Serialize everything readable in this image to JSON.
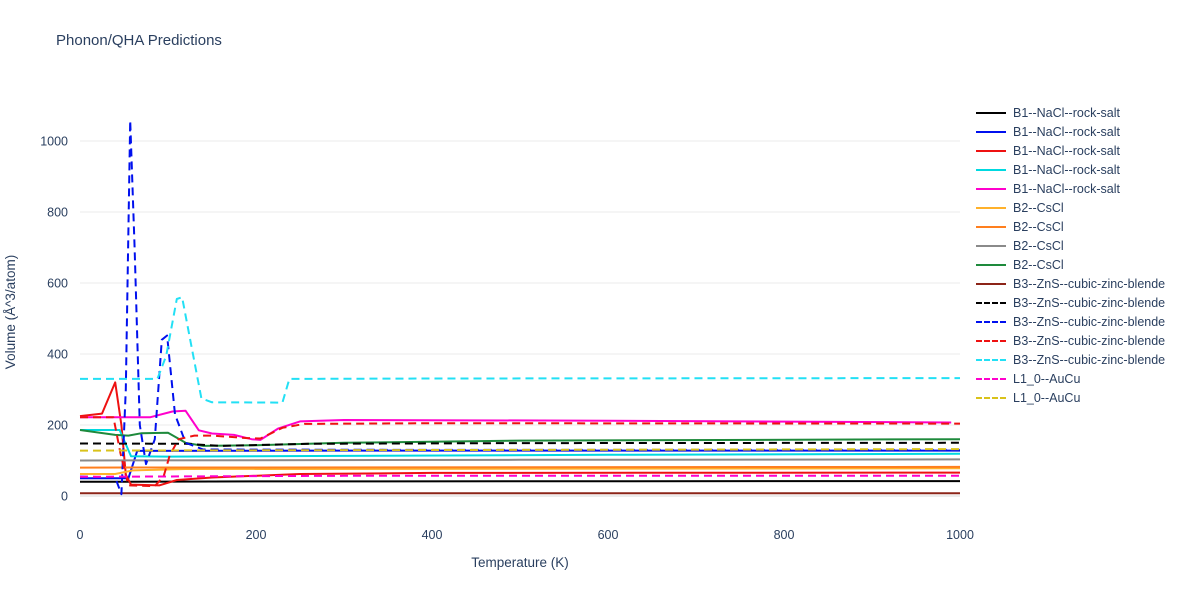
{
  "page": {
    "title": "Phonon/QHA Predictions"
  },
  "chart_data": {
    "type": "line",
    "title": "Phonon/QHA Predictions",
    "xlabel": "Temperature (K)",
    "ylabel": "Volume (Å^3/atom)",
    "xlim": [
      0,
      1000
    ],
    "ylim": [
      -65,
      1115
    ],
    "x_ticks": [
      0,
      200,
      400,
      600,
      800,
      1000
    ],
    "y_ticks": [
      0,
      200,
      400,
      600,
      800,
      1000
    ],
    "grid": true,
    "legend_position": "right",
    "series": [
      {
        "name": "B1--NaCl--rock-salt",
        "color": "#000000",
        "dash": "solid",
        "points": [
          [
            0,
            40
          ],
          [
            200,
            41
          ],
          [
            1000,
            42
          ]
        ]
      },
      {
        "name": "B1--NaCl--rock-salt",
        "color": "#0010ee",
        "dash": "solid",
        "points": [
          [
            0,
            50
          ],
          [
            55,
            50
          ],
          [
            65,
            127
          ],
          [
            300,
            128
          ],
          [
            1000,
            128
          ]
        ]
      },
      {
        "name": "B1--NaCl--rock-salt",
        "color": "#ee1111",
        "dash": "solid",
        "points": [
          [
            0,
            225
          ],
          [
            25,
            232
          ],
          [
            40,
            320
          ],
          [
            47,
            200
          ],
          [
            52,
            60
          ],
          [
            58,
            32
          ],
          [
            90,
            30
          ],
          [
            110,
            45
          ],
          [
            150,
            52
          ],
          [
            250,
            62
          ],
          [
            400,
            65
          ],
          [
            1000,
            66
          ]
        ]
      },
      {
        "name": "B1--NaCl--rock-salt",
        "color": "#00d9e0",
        "dash": "solid",
        "points": [
          [
            0,
            186
          ],
          [
            45,
            186
          ],
          [
            58,
            112
          ],
          [
            100,
            111
          ],
          [
            300,
            113
          ],
          [
            600,
            116
          ],
          [
            1000,
            119
          ]
        ]
      },
      {
        "name": "B1--NaCl--rock-salt",
        "color": "#ff00cc",
        "dash": "solid",
        "points": [
          [
            0,
            222
          ],
          [
            80,
            222
          ],
          [
            105,
            238
          ],
          [
            120,
            240
          ],
          [
            135,
            185
          ],
          [
            150,
            176
          ],
          [
            175,
            172
          ],
          [
            195,
            160
          ],
          [
            205,
            158
          ],
          [
            225,
            190
          ],
          [
            250,
            210
          ],
          [
            300,
            214
          ],
          [
            600,
            212
          ],
          [
            990,
            207
          ]
        ]
      },
      {
        "name": "B2--CsCl",
        "color": "#ffb12b",
        "dash": "solid",
        "points": [
          [
            0,
            62
          ],
          [
            40,
            62
          ],
          [
            60,
            72
          ],
          [
            120,
            76
          ],
          [
            1000,
            78
          ]
        ]
      },
      {
        "name": "B2--CsCl",
        "color": "#ff7f1e",
        "dash": "solid",
        "points": [
          [
            0,
            80
          ],
          [
            500,
            81
          ],
          [
            1000,
            82
          ]
        ]
      },
      {
        "name": "B2--CsCl",
        "color": "#8a8a8a",
        "dash": "solid",
        "points": [
          [
            0,
            100
          ],
          [
            500,
            102
          ],
          [
            1000,
            103
          ]
        ]
      },
      {
        "name": "B2--CsCl",
        "color": "#1e8a3c",
        "dash": "solid",
        "points": [
          [
            0,
            186
          ],
          [
            40,
            172
          ],
          [
            55,
            170
          ],
          [
            70,
            177
          ],
          [
            100,
            178
          ],
          [
            120,
            150
          ],
          [
            140,
            141
          ],
          [
            200,
            143
          ],
          [
            300,
            150
          ],
          [
            500,
            156
          ],
          [
            1000,
            160
          ]
        ]
      },
      {
        "name": "B3--ZnS--cubic-zinc-blende",
        "color": "#8c2418",
        "dash": "solid",
        "points": [
          [
            0,
            8
          ],
          [
            500,
            8
          ],
          [
            1000,
            8
          ]
        ]
      },
      {
        "name": "B3--ZnS--cubic-zinc-blende",
        "color": "#000000",
        "dash": "dash",
        "points": [
          [
            0,
            148
          ],
          [
            120,
            147
          ],
          [
            160,
            141
          ],
          [
            260,
            147
          ],
          [
            500,
            149
          ],
          [
            1000,
            150
          ]
        ]
      },
      {
        "name": "B3--ZnS--cubic-zinc-blende",
        "color": "#0010ee",
        "dash": "dash",
        "points": [
          [
            0,
            55
          ],
          [
            40,
            52
          ],
          [
            47,
            5
          ],
          [
            52,
            300
          ],
          [
            57,
            1058
          ],
          [
            62,
            700
          ],
          [
            68,
            200
          ],
          [
            75,
            90
          ],
          [
            85,
            160
          ],
          [
            93,
            440
          ],
          [
            99,
            452
          ],
          [
            108,
            230
          ],
          [
            120,
            150
          ],
          [
            140,
            131
          ],
          [
            400,
            130
          ],
          [
            1000,
            130
          ]
        ]
      },
      {
        "name": "B3--ZnS--cubic-zinc-blende",
        "color": "#ee1111",
        "dash": "dash",
        "points": [
          [
            0,
            222
          ],
          [
            38,
            222
          ],
          [
            46,
            120
          ],
          [
            55,
            30
          ],
          [
            85,
            28
          ],
          [
            95,
            55
          ],
          [
            102,
            115
          ],
          [
            112,
            160
          ],
          [
            130,
            170
          ],
          [
            150,
            170
          ],
          [
            190,
            163
          ],
          [
            205,
            162
          ],
          [
            230,
            192
          ],
          [
            255,
            203
          ],
          [
            400,
            205
          ],
          [
            1000,
            204
          ]
        ]
      },
      {
        "name": "B3--ZnS--cubic-zinc-blende",
        "color": "#22e0f5",
        "dash": "dash",
        "points": [
          [
            0,
            330
          ],
          [
            88,
            330
          ],
          [
            98,
            395
          ],
          [
            110,
            555
          ],
          [
            116,
            560
          ],
          [
            126,
            430
          ],
          [
            138,
            275
          ],
          [
            150,
            264
          ],
          [
            230,
            263
          ],
          [
            238,
            330
          ],
          [
            400,
            331
          ],
          [
            1000,
            332
          ]
        ]
      },
      {
        "name": "L1_0--AuCu",
        "color": "#ff00cc",
        "dash": "dash",
        "points": [
          [
            0,
            54
          ],
          [
            300,
            57
          ],
          [
            1000,
            57
          ]
        ]
      },
      {
        "name": "L1_0--AuCu",
        "color": "#d9c21a",
        "dash": "dash",
        "points": [
          [
            0,
            128
          ],
          [
            500,
            130
          ],
          [
            1000,
            132
          ]
        ]
      }
    ]
  }
}
